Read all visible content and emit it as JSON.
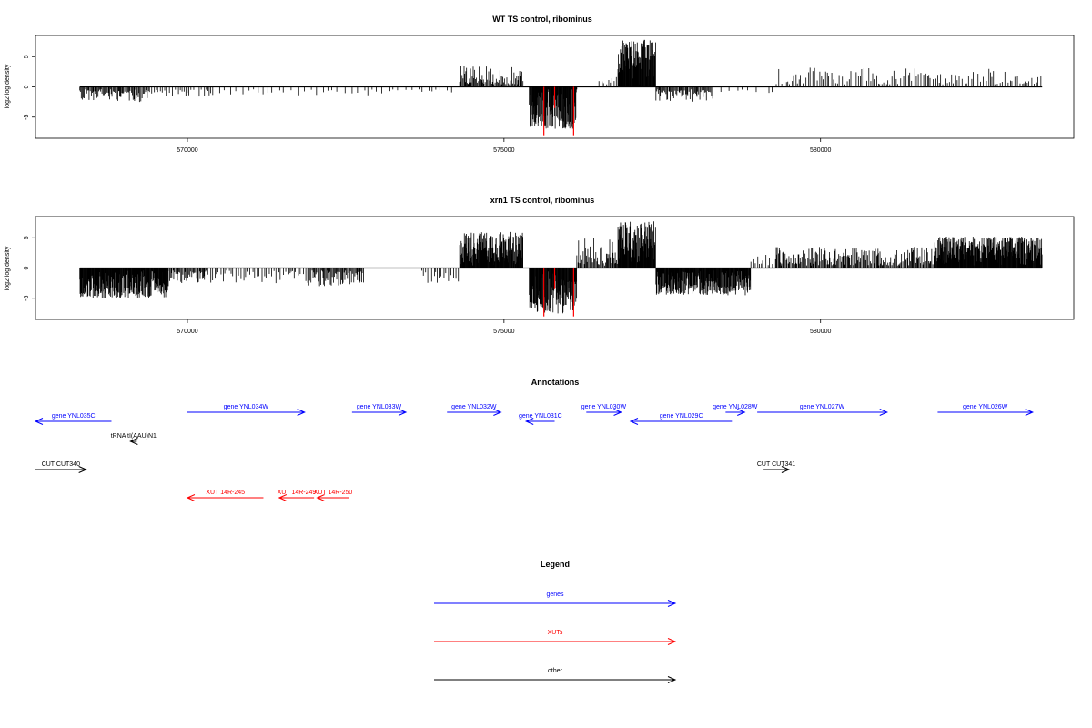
{
  "colors": {
    "genes": "#0000ff",
    "xuts": "#ff0000",
    "other": "#000000",
    "axis": "#000000",
    "highlight": "#ff0000"
  },
  "chart_data": [
    {
      "type": "bar",
      "title": "WT TS control, ribominus",
      "xlabel": "",
      "ylabel": "log2 log density",
      "xlim": [
        567600,
        584000
      ],
      "ylim": [
        -8.5,
        8.5
      ],
      "xticks": [
        570000,
        575000,
        580000
      ],
      "yticks": [
        -5,
        0,
        5
      ],
      "segments": [
        {
          "from": 568300,
          "to": 569400,
          "kind": "neg",
          "max": 2.5,
          "density": "med"
        },
        {
          "from": 569400,
          "to": 570400,
          "kind": "neg",
          "max": 1.6,
          "density": "low"
        },
        {
          "from": 570400,
          "to": 573200,
          "kind": "neg",
          "max": 1.4,
          "density": "sparse"
        },
        {
          "from": 573200,
          "to": 574200,
          "kind": "neg",
          "max": 0.8,
          "density": "sparse"
        },
        {
          "from": 574300,
          "to": 575300,
          "kind": "pos",
          "max": 3.5,
          "density": "med"
        },
        {
          "from": 575400,
          "to": 576150,
          "kind": "neg",
          "max": 7.0,
          "density": "high"
        },
        {
          "from": 576500,
          "to": 576800,
          "kind": "pos",
          "max": 1.8,
          "density": "low"
        },
        {
          "from": 576800,
          "to": 577400,
          "kind": "pos",
          "max": 7.8,
          "density": "high"
        },
        {
          "from": 577400,
          "to": 578300,
          "kind": "neg",
          "max": 2.5,
          "density": "med"
        },
        {
          "from": 578300,
          "to": 579300,
          "kind": "neg",
          "max": 1.2,
          "density": "sparse"
        },
        {
          "from": 579300,
          "to": 583500,
          "kind": "pos",
          "max": 3.2,
          "density": "low"
        }
      ],
      "highlights": [
        {
          "x": 575630,
          "y": -8.0
        },
        {
          "x": 575800,
          "y": -3.5
        },
        {
          "x": 576100,
          "y": -8.0
        }
      ]
    },
    {
      "type": "bar",
      "title": "xrn1 TS control, ribominus",
      "xlabel": "",
      "ylabel": "log2 log density",
      "xlim": [
        567600,
        584000
      ],
      "ylim": [
        -8.5,
        8.5
      ],
      "xticks": [
        570000,
        575000,
        580000
      ],
      "yticks": [
        -5,
        0,
        5
      ],
      "segments": [
        {
          "from": 568300,
          "to": 569700,
          "kind": "neg",
          "max": 5.0,
          "density": "high"
        },
        {
          "from": 569700,
          "to": 570300,
          "kind": "neg",
          "max": 2.5,
          "density": "med"
        },
        {
          "from": 570300,
          "to": 571900,
          "kind": "neg",
          "max": 2.5,
          "density": "low"
        },
        {
          "from": 571900,
          "to": 572800,
          "kind": "neg",
          "max": 3.0,
          "density": "med"
        },
        {
          "from": 573700,
          "to": 574300,
          "kind": "neg",
          "max": 2.5,
          "density": "low"
        },
        {
          "from": 574300,
          "to": 575300,
          "kind": "pos",
          "max": 6.0,
          "density": "high"
        },
        {
          "from": 575400,
          "to": 576150,
          "kind": "neg",
          "max": 7.5,
          "density": "high"
        },
        {
          "from": 576150,
          "to": 576800,
          "kind": "pos",
          "max": 5.0,
          "density": "med"
        },
        {
          "from": 576800,
          "to": 577400,
          "kind": "pos",
          "max": 7.8,
          "density": "high"
        },
        {
          "from": 577400,
          "to": 578900,
          "kind": "neg",
          "max": 4.5,
          "density": "high"
        },
        {
          "from": 578900,
          "to": 579300,
          "kind": "pos",
          "max": 2.5,
          "density": "low"
        },
        {
          "from": 579300,
          "to": 581800,
          "kind": "pos",
          "max": 3.5,
          "density": "med"
        },
        {
          "from": 581800,
          "to": 583500,
          "kind": "pos",
          "max": 5.2,
          "density": "high"
        }
      ],
      "highlights": [
        {
          "x": 575630,
          "y": -8.0
        },
        {
          "x": 575800,
          "y": -3.5
        },
        {
          "x": 576100,
          "y": -8.0
        }
      ]
    }
  ],
  "annotations": {
    "title": "Annotations",
    "features": [
      {
        "label": "gene YNL035C",
        "start": 568800,
        "end": 567600,
        "group": "genes",
        "row": 1
      },
      {
        "label": "gene YNL034W",
        "start": 570000,
        "end": 571850,
        "group": "genes",
        "row": 0
      },
      {
        "label": "gene YNL033W",
        "start": 572600,
        "end": 573450,
        "group": "genes",
        "row": 0
      },
      {
        "label": "gene YNL032W",
        "start": 574100,
        "end": 574950,
        "group": "genes",
        "row": 0
      },
      {
        "label": "gene YNL031C",
        "start": 575800,
        "end": 575350,
        "group": "genes",
        "row": 1
      },
      {
        "label": "gene YNL030W",
        "start": 576300,
        "end": 576850,
        "group": "genes",
        "row": 0
      },
      {
        "label": "gene YNL029C",
        "start": 578600,
        "end": 577000,
        "group": "genes",
        "row": 1
      },
      {
        "label": "gene YNL028W",
        "start": 578500,
        "end": 578800,
        "group": "genes",
        "row": 0
      },
      {
        "label": "gene YNL027W",
        "start": 579000,
        "end": 581050,
        "group": "genes",
        "row": 0
      },
      {
        "label": "gene YNL026W",
        "start": 581850,
        "end": 583350,
        "group": "genes",
        "row": 0
      },
      {
        "label": "tRNA tI(AAU)N1",
        "start": 569200,
        "end": 569100,
        "group": "other",
        "row": 2
      },
      {
        "label": "CUT CUT340",
        "start": 567600,
        "end": 568400,
        "group": "other",
        "row": 3
      },
      {
        "label": "CUT CUT341",
        "start": 579100,
        "end": 579500,
        "group": "other",
        "row": 3
      },
      {
        "label": "XUT 14R-245",
        "start": 571200,
        "end": 570000,
        "group": "xuts",
        "row": 4
      },
      {
        "label": "XUT 14R-249",
        "start": 572000,
        "end": 571450,
        "group": "xuts",
        "row": 4
      },
      {
        "label": "XUT 14R-250",
        "start": 572550,
        "end": 572050,
        "group": "xuts",
        "row": 4
      }
    ]
  },
  "legend": {
    "title": "Legend",
    "items": [
      {
        "label": "genes",
        "group": "genes"
      },
      {
        "label": "XUTs",
        "group": "xuts"
      },
      {
        "label": "other",
        "group": "other"
      }
    ]
  }
}
